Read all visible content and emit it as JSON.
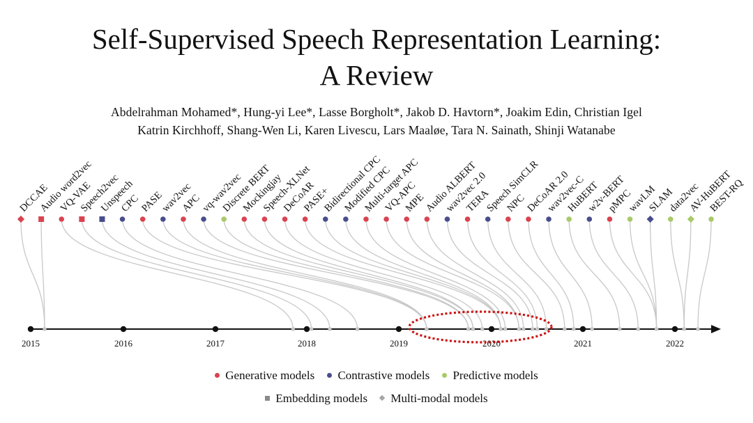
{
  "title_line1": "Self-Supervised Speech Representation Learning:",
  "title_line2": "A Review",
  "authors_line1": "Abdelrahman Mohamed*, Hung-yi Lee*, Lasse Borgholt*, Jakob D. Havtorn*, Joakim Edin, Christian Igel",
  "authors_line2": "Katrin Kirchhoff, Shang-Wen Li, Karen Livescu, Lars Maaløe, Tara N. Sainath, Shinji Watanabe",
  "colors": {
    "generative": "#d9434f",
    "contrastive": "#4a4d8c",
    "predictive": "#a9c968",
    "embedding": "#8a8a8a",
    "multimodal": "#a6a6a6",
    "highlight": "#cc1111"
  },
  "legend": {
    "generative": "Generative models",
    "contrastive": "Contrastive models",
    "predictive": "Predictive models",
    "embedding": "Embedding models",
    "multimodal": "Multi-modal models"
  },
  "years": [
    "2015",
    "2016",
    "2017",
    "2018",
    "2019",
    "2020",
    "2021",
    "2022"
  ],
  "models": [
    {
      "name": "DCCAE",
      "category": "generative",
      "shape": "diamond",
      "date": 2015.15
    },
    {
      "name": "Audio word2vec",
      "category": "generative",
      "shape": "square",
      "date": 2015.15
    },
    {
      "name": "VQ-VAE",
      "category": "generative",
      "shape": "circle",
      "date": 2017.85
    },
    {
      "name": "Speech2vec",
      "category": "generative",
      "shape": "square",
      "date": 2018.05
    },
    {
      "name": "Unspeech",
      "category": "contrastive",
      "shape": "square",
      "date": 2018.25
    },
    {
      "name": "CPC",
      "category": "contrastive",
      "shape": "circle",
      "date": 2018.55
    },
    {
      "name": "PASE",
      "category": "generative",
      "shape": "circle",
      "date": 2019.3
    },
    {
      "name": "wav2vec",
      "category": "contrastive",
      "shape": "circle",
      "date": 2019.3
    },
    {
      "name": "APC",
      "category": "generative",
      "shape": "circle",
      "date": 2019.3
    },
    {
      "name": "vq-wav2vec",
      "category": "contrastive",
      "shape": "circle",
      "date": 2019.75
    },
    {
      "name": "Discrete BERT",
      "category": "predictive",
      "shape": "circle",
      "date": 2019.75
    },
    {
      "name": "Mockingjay",
      "category": "generative",
      "shape": "circle",
      "date": 2019.8
    },
    {
      "name": "Speech-XLNet",
      "category": "generative",
      "shape": "circle",
      "date": 2019.8
    },
    {
      "name": "DeCoAR",
      "category": "generative",
      "shape": "circle",
      "date": 2019.9
    },
    {
      "name": "PASE+",
      "category": "generative",
      "shape": "circle",
      "date": 2020.1
    },
    {
      "name": "Bidirectional CPC",
      "category": "contrastive",
      "shape": "circle",
      "date": 2020.1
    },
    {
      "name": "Modified CPC",
      "category": "contrastive",
      "shape": "circle",
      "date": 2020.1
    },
    {
      "name": "Multi-target APC",
      "category": "generative",
      "shape": "circle",
      "date": 2020.15
    },
    {
      "name": "VQ-APC",
      "category": "generative",
      "shape": "circle",
      "date": 2020.3
    },
    {
      "name": "MPE",
      "category": "generative",
      "shape": "circle",
      "date": 2020.3
    },
    {
      "name": "Audio ALBERT",
      "category": "generative",
      "shape": "circle",
      "date": 2020.35
    },
    {
      "name": "wav2vec 2.0",
      "category": "contrastive",
      "shape": "circle",
      "date": 2020.45
    },
    {
      "name": "TERA",
      "category": "generative",
      "shape": "circle",
      "date": 2020.5
    },
    {
      "name": "Speech SimCLR",
      "category": "contrastive",
      "shape": "circle",
      "date": 2020.6
    },
    {
      "name": "NPC",
      "category": "generative",
      "shape": "circle",
      "date": 2020.8
    },
    {
      "name": "DeCoAR 2.0",
      "category": "generative",
      "shape": "circle",
      "date": 2020.9
    },
    {
      "name": "wav2vec-C",
      "category": "contrastive",
      "shape": "circle",
      "date": 2021.1
    },
    {
      "name": "HuBERT",
      "category": "predictive",
      "shape": "circle",
      "date": 2021.4
    },
    {
      "name": "w2v-BERT",
      "category": "contrastive",
      "shape": "circle",
      "date": 2021.6
    },
    {
      "name": "pMPC",
      "category": "generative",
      "shape": "circle",
      "date": 2021.8
    },
    {
      "name": "wavLM",
      "category": "predictive",
      "shape": "circle",
      "date": 2021.8
    },
    {
      "name": "SLAM",
      "category": "contrastive",
      "shape": "diamond",
      "date": 2021.8
    },
    {
      "name": "data2vec",
      "category": "predictive",
      "shape": "circle",
      "date": 2022.1
    },
    {
      "name": "AV-HuBERT",
      "category": "predictive",
      "shape": "diamond",
      "date": 2022.1
    },
    {
      "name": "BEST-RQ",
      "category": "predictive",
      "shape": "circle",
      "date": 2022.25
    }
  ]
}
